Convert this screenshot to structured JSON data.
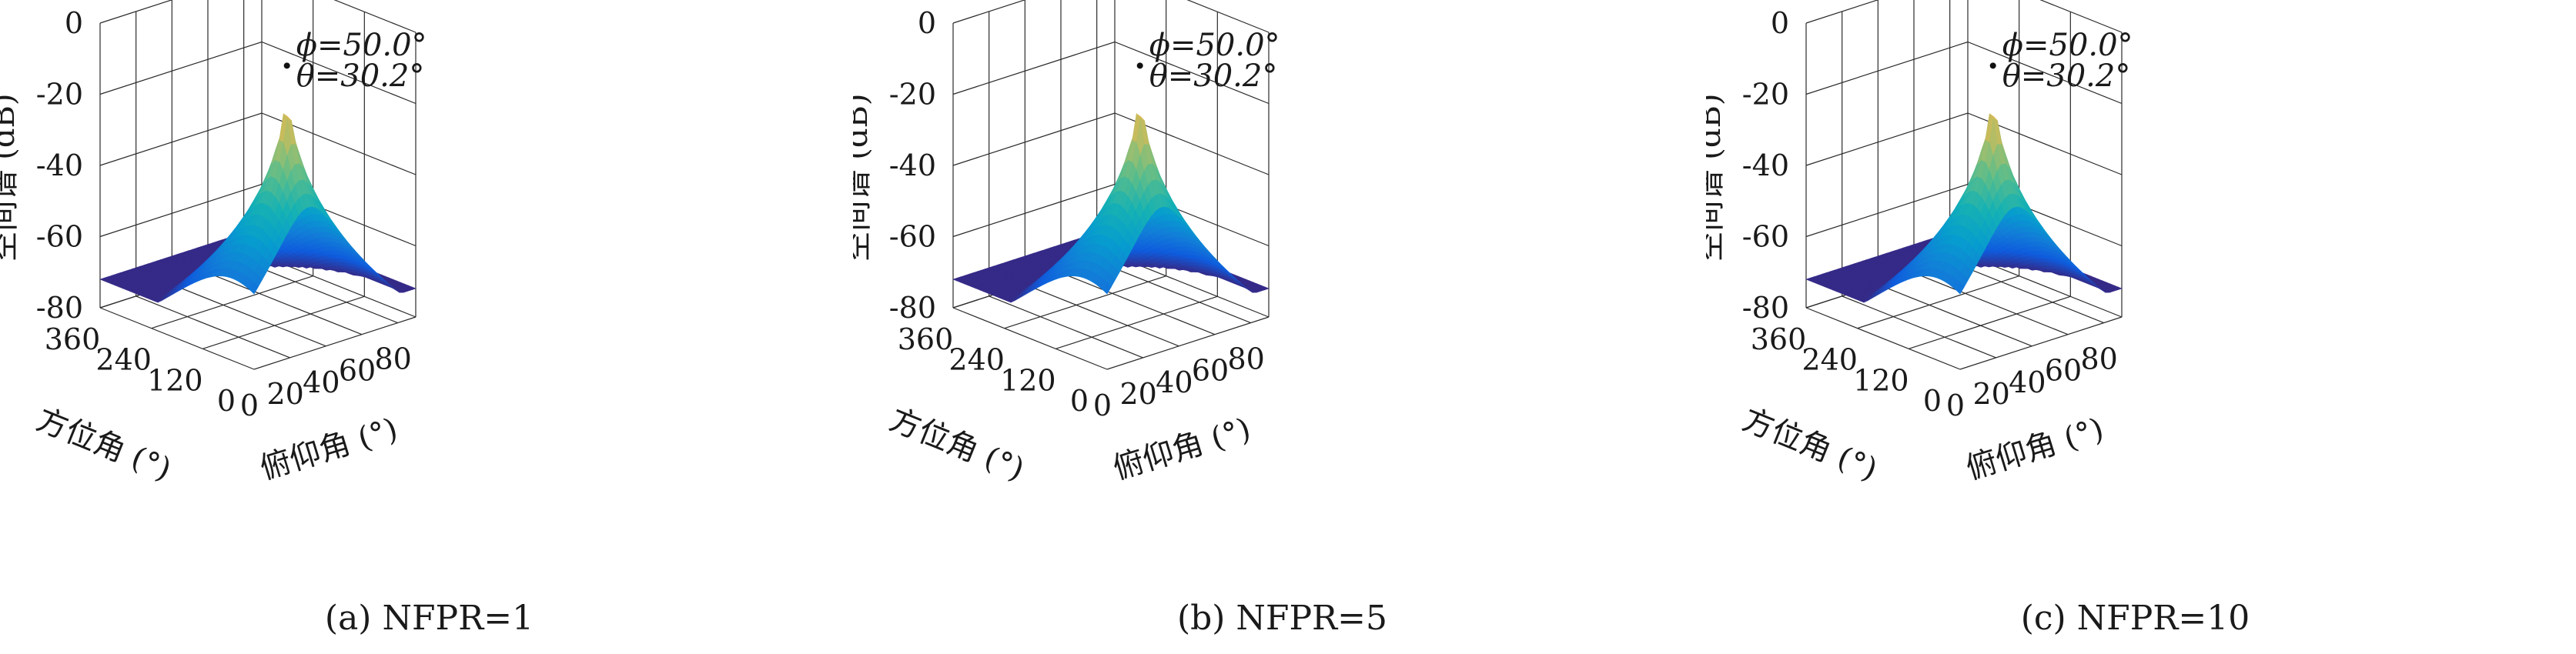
{
  "chart_data": [
    {
      "type": "surface",
      "caption": "(a) NFPR=1",
      "xlabel": "俯仰角 (°)",
      "ylabel": "方位角 (°)",
      "zlabel": "空间谱 (dB)",
      "xticks": [
        "0",
        "20",
        "40",
        "60",
        "80"
      ],
      "yticks": [
        "0",
        "120",
        "240",
        "360"
      ],
      "zticks": [
        "0",
        "-20",
        "-40",
        "-60",
        "-80"
      ],
      "xlim": [
        0,
        90
      ],
      "ylim": [
        0,
        360
      ],
      "zlim": [
        -80,
        0
      ],
      "peak": {
        "elevation": 30.2,
        "azimuth": 50.0,
        "value_db": 0
      },
      "annotation": [
        "ϕ=50.0°",
        "θ=30.2°"
      ],
      "floor_db": -72,
      "colormap": "parula",
      "grid": true
    },
    {
      "type": "surface",
      "caption": "(b) NFPR=5",
      "xlabel": "俯仰角 (°)",
      "ylabel": "方位角 (°)",
      "zlabel": "空间谱 (dB)",
      "xticks": [
        "0",
        "20",
        "40",
        "60",
        "80"
      ],
      "yticks": [
        "0",
        "120",
        "240",
        "360"
      ],
      "zticks": [
        "0",
        "-20",
        "-40",
        "-60",
        "-80"
      ],
      "xlim": [
        0,
        90
      ],
      "ylim": [
        0,
        360
      ],
      "zlim": [
        -80,
        0
      ],
      "peak": {
        "elevation": 30.2,
        "azimuth": 50.0,
        "value_db": 0
      },
      "annotation": [
        "ϕ=50.0°",
        "θ=30.2°"
      ],
      "floor_db": -72,
      "colormap": "parula",
      "grid": true
    },
    {
      "type": "surface",
      "caption": "(c) NFPR=10",
      "xlabel": "俯仰角 (°)",
      "ylabel": "方位角 (°)",
      "zlabel": "空间谱 (dB)",
      "xticks": [
        "0",
        "20",
        "40",
        "60",
        "80"
      ],
      "yticks": [
        "0",
        "120",
        "240",
        "360"
      ],
      "zticks": [
        "0",
        "-20",
        "-40",
        "-60",
        "-80"
      ],
      "xlim": [
        0,
        90
      ],
      "ylim": [
        0,
        360
      ],
      "zlim": [
        -80,
        0
      ],
      "peak": {
        "elevation": 30.2,
        "azimuth": 50.0,
        "value_db": 0
      },
      "annotation": [
        "ϕ=50.0°",
        "θ=30.2°"
      ],
      "floor_db": -72,
      "colormap": "parula",
      "grid": true
    }
  ]
}
